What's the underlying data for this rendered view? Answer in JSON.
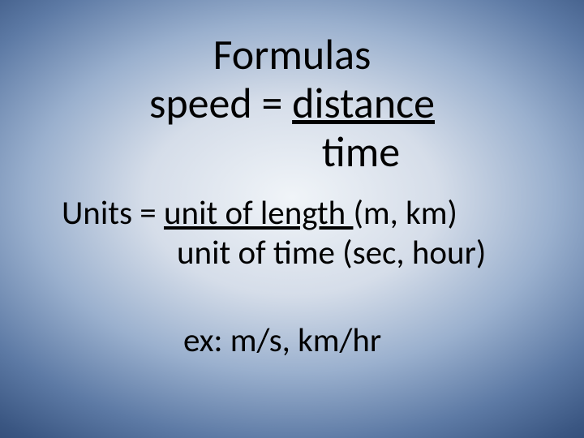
{
  "slide": {
    "background": {
      "type": "radial-gradient",
      "center_color": "#f0f4f8",
      "mid_color": "#9ab0ce",
      "edge_color": "#263e66"
    },
    "text_color": "#000000",
    "font_family": "Calibri",
    "title": {
      "line1": "Formulas",
      "line2_prefix": "speed = ",
      "line2_numerator": "distance",
      "denominator": "time",
      "fontsize": 52
    },
    "units": {
      "prefix": "Units =  ",
      "numerator": "unit of length ",
      "numerator_examples": "(m, km)",
      "denominator": "unit of time   ",
      "denominator_examples": "(sec, hour)",
      "fontsize": 41
    },
    "example": {
      "text": "ex: m/s, km/hr",
      "fontsize": 41
    }
  }
}
